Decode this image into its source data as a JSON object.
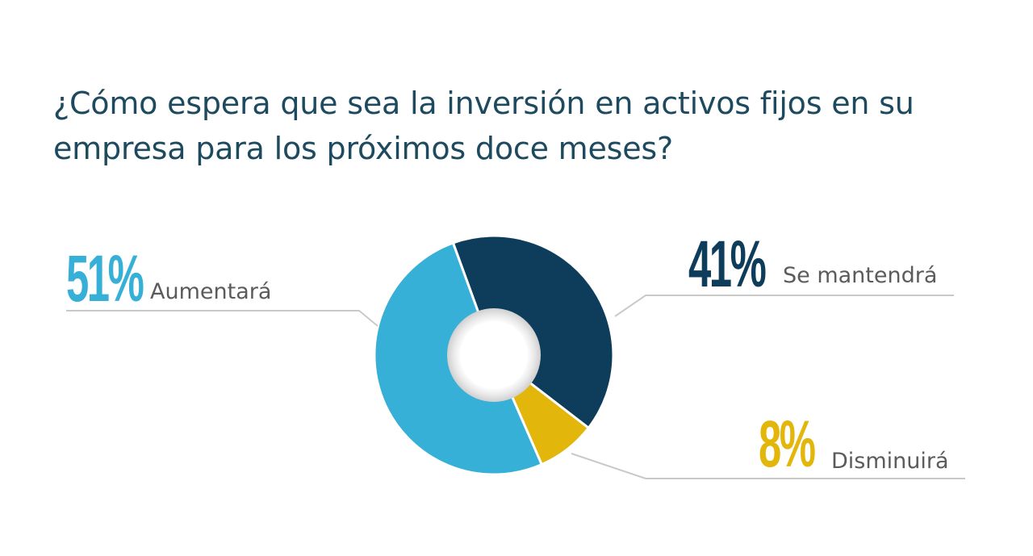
{
  "title": "¿Cómo espera que sea la inversión en activos fijos en su empresa para los próximos doce meses?",
  "chart_data": {
    "type": "pie",
    "variant": "donut",
    "slices": [
      {
        "label": "Se mantendrá",
        "value": 41,
        "display": "41%",
        "color": "#0e3d5c"
      },
      {
        "label": "Disminuirá",
        "value": 8,
        "display": "8%",
        "color": "#e3b60c"
      },
      {
        "label": "Aumentará",
        "value": 51,
        "display": "51%",
        "color": "#37b0d8"
      }
    ],
    "start_angle_deg": -20,
    "legend": "callouts"
  }
}
